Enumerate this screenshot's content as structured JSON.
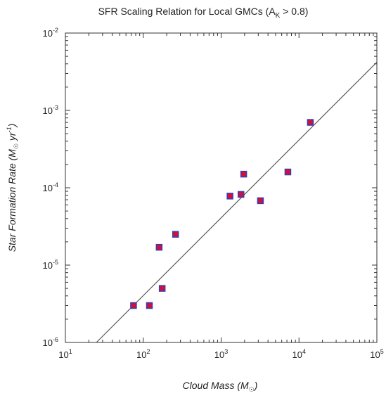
{
  "chart_data": {
    "type": "scatter",
    "title": "SFR Scaling Relation for Local GMCs (A",
    "title_subscript": "K",
    "title_suffix": " > 0.8)",
    "xlabel": "Cloud Mass (M",
    "xlabel_subscript": "☉",
    "xlabel_suffix": ")",
    "ylabel": "Star Formation Rate (M",
    "ylabel_subscript": "☉",
    "ylabel_middle": " yr",
    "ylabel_superscript": "-1",
    "ylabel_suffix": ")",
    "xscale": "log",
    "yscale": "log",
    "xlim": [
      10,
      100000
    ],
    "ylim": [
      1e-06,
      0.01
    ],
    "grid": false,
    "x_ticks": [
      {
        "base": "10",
        "exp": "1"
      },
      {
        "base": "10",
        "exp": "2"
      },
      {
        "base": "10",
        "exp": "3"
      },
      {
        "base": "10",
        "exp": "4"
      },
      {
        "base": "10",
        "exp": "5"
      }
    ],
    "y_ticks": [
      {
        "base": "10",
        "exp": "-6"
      },
      {
        "base": "10",
        "exp": "-5"
      },
      {
        "base": "10",
        "exp": "-4"
      },
      {
        "base": "10",
        "exp": "-3"
      },
      {
        "base": "10",
        "exp": "-2"
      }
    ],
    "points": [
      {
        "x": 75,
        "y": 3e-06
      },
      {
        "x": 120,
        "y": 3e-06
      },
      {
        "x": 160,
        "y": 1.7e-05
      },
      {
        "x": 175,
        "y": 5e-06
      },
      {
        "x": 260,
        "y": 2.5e-05
      },
      {
        "x": 1300,
        "y": 7.8e-05
      },
      {
        "x": 1800,
        "y": 8.2e-05
      },
      {
        "x": 1950,
        "y": 0.00015
      },
      {
        "x": 3200,
        "y": 6.8e-05
      },
      {
        "x": 7200,
        "y": 0.00016
      },
      {
        "x": 14000,
        "y": 0.0007
      }
    ],
    "fit_line": {
      "x": [
        25,
        100000
      ],
      "y": [
        1e-06,
        0.0042
      ]
    },
    "marker_fill": "#d0103a",
    "marker_stroke": "#3b3bb3",
    "line_color": "#555555"
  }
}
